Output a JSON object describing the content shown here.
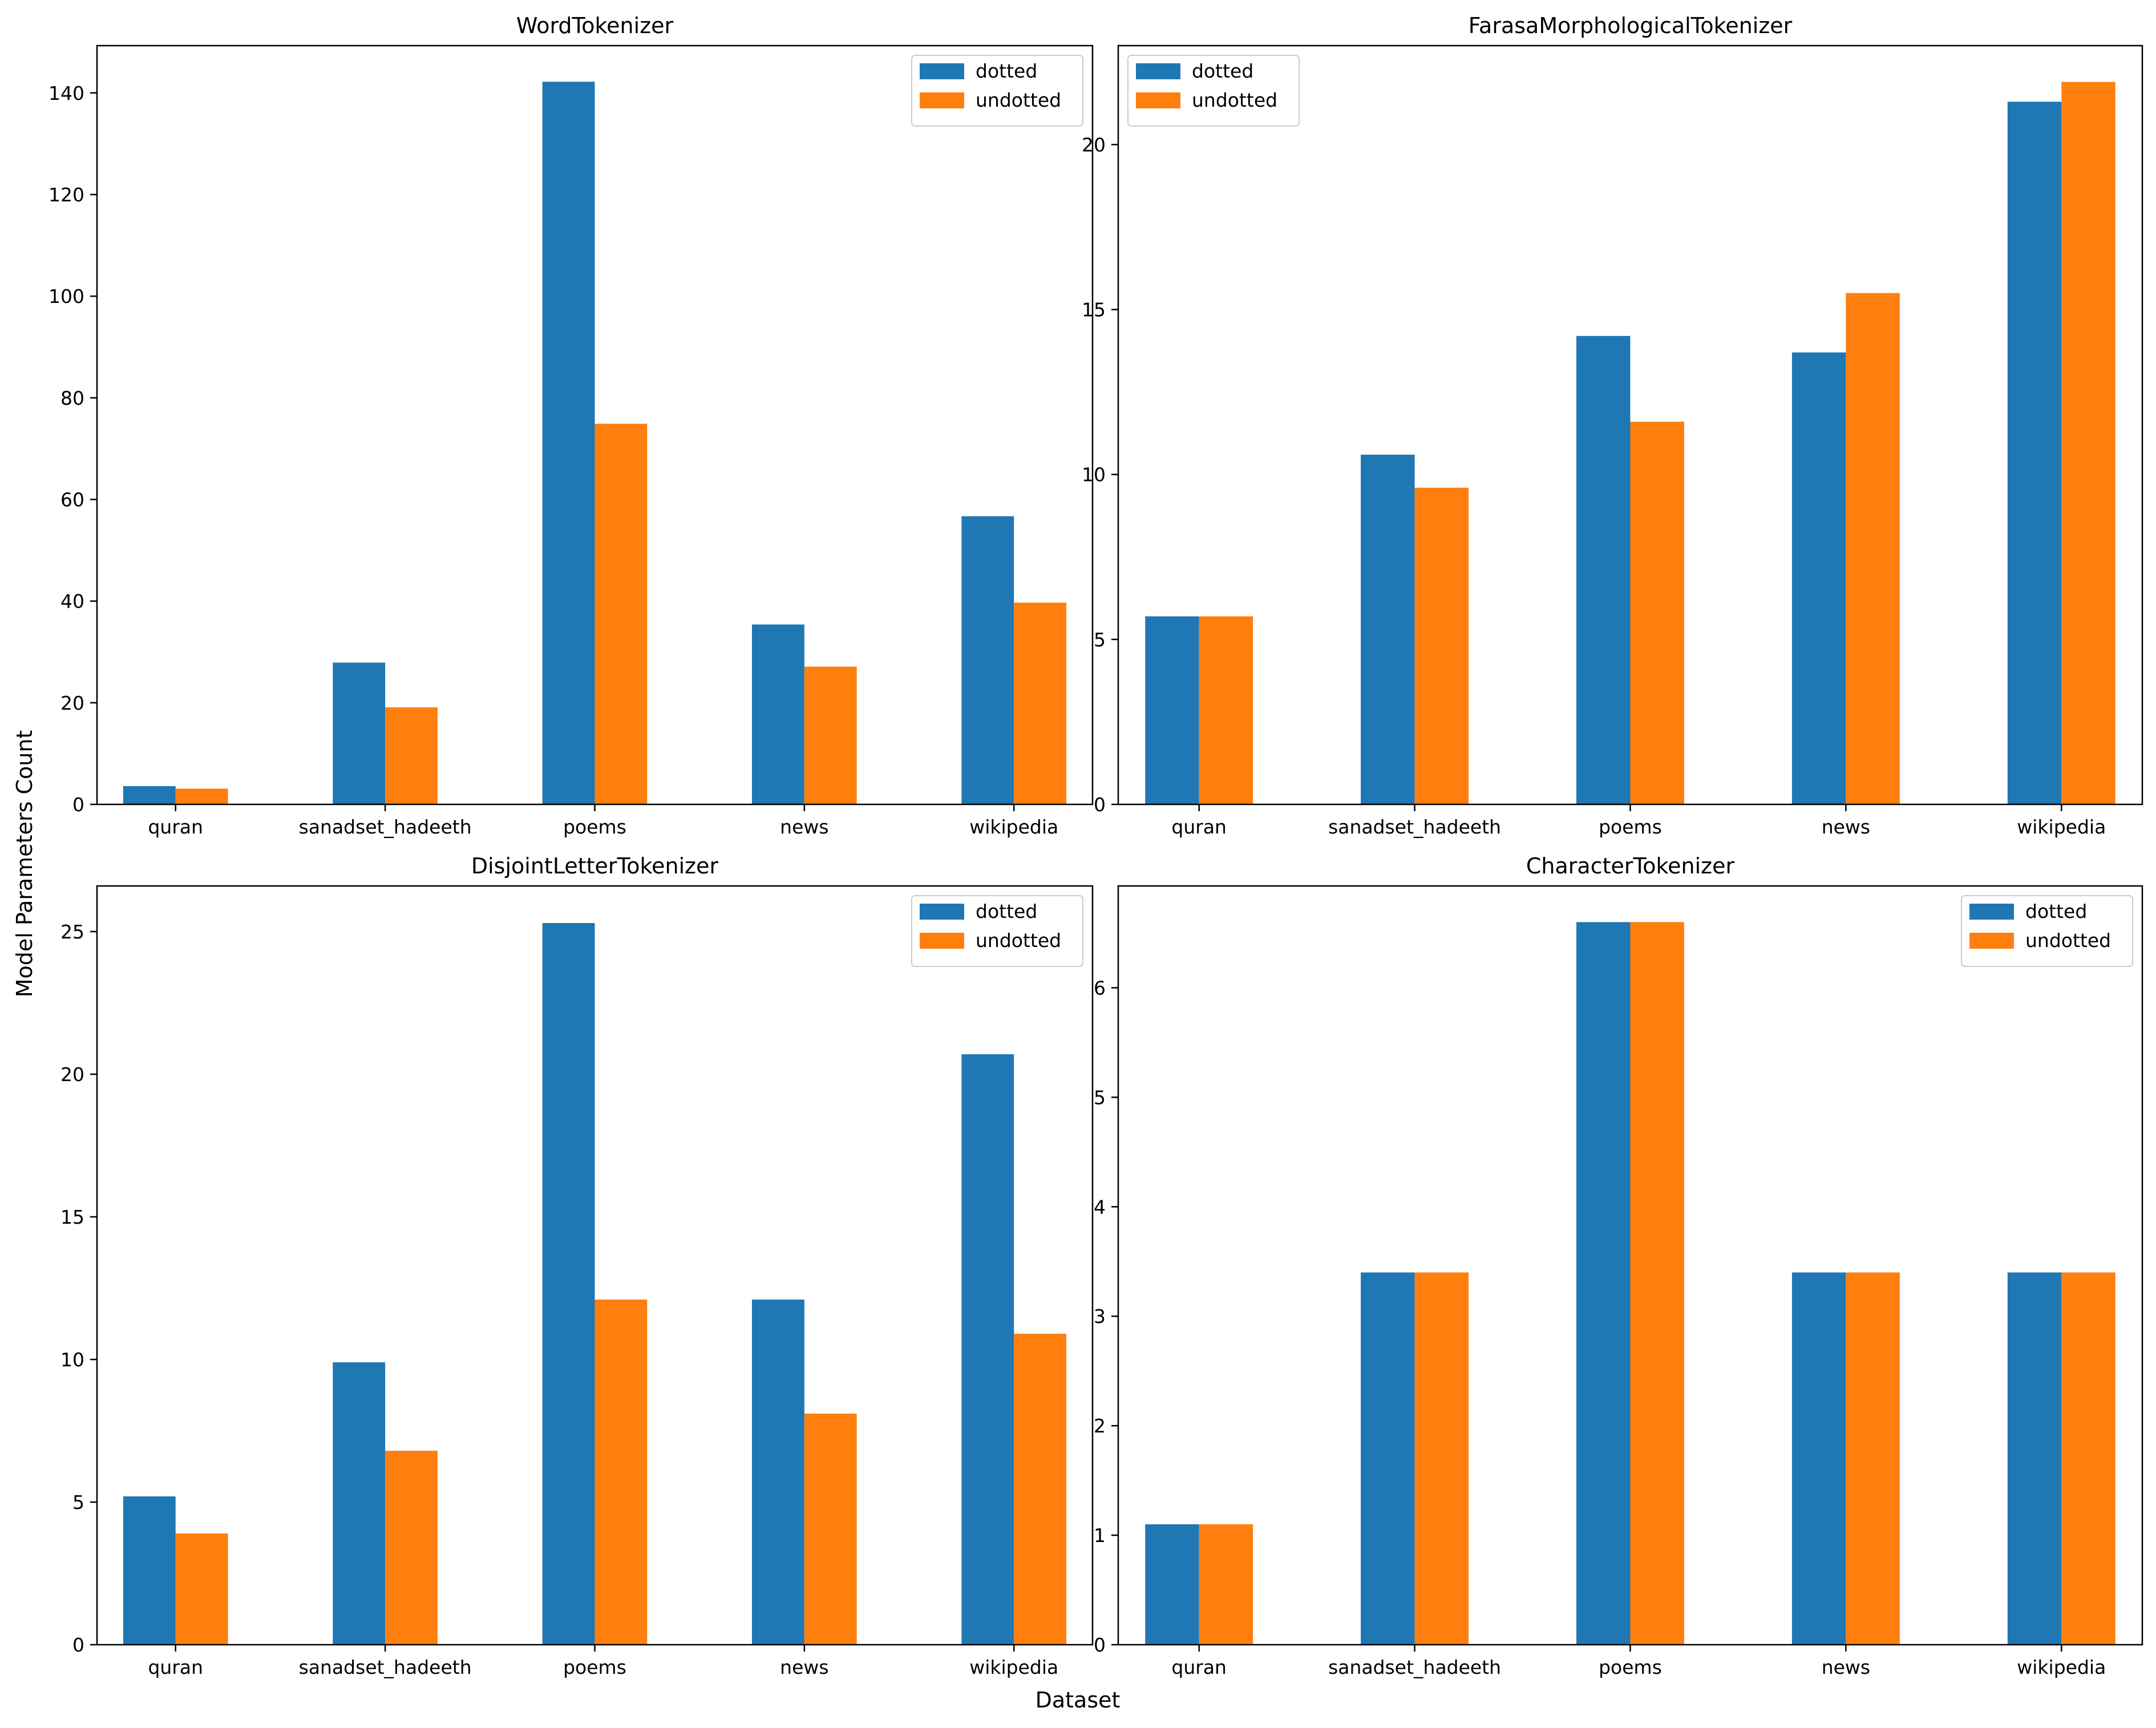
{
  "figure": {
    "xlabel": "Dataset",
    "ylabel": "Model Parameters Count",
    "colors": {
      "dotted": "#1f77b4",
      "undotted": "#ff7f0e"
    }
  },
  "chart_data": [
    {
      "type": "bar",
      "title": "WordTokenizer",
      "categories": [
        "quran",
        "sanadset_hadeeth",
        "poems",
        "news",
        "wikipedia"
      ],
      "series": [
        {
          "name": "dotted",
          "values": [
            3.6,
            27.9,
            142.2,
            35.4,
            56.7
          ]
        },
        {
          "name": "undotted",
          "values": [
            3.1,
            19.1,
            74.9,
            27.1,
            39.7
          ]
        }
      ],
      "ylim": [
        0,
        149.3
      ],
      "yticks": [
        0,
        20,
        40,
        60,
        80,
        100,
        120,
        140
      ],
      "legend": "top-right"
    },
    {
      "type": "bar",
      "title": "FarasaMorphologicalTokenizer",
      "categories": [
        "quran",
        "sanadset_hadeeth",
        "poems",
        "news",
        "wikipedia"
      ],
      "series": [
        {
          "name": "dotted",
          "values": [
            5.7,
            10.6,
            14.2,
            13.7,
            21.3
          ]
        },
        {
          "name": "undotted",
          "values": [
            5.7,
            9.6,
            11.6,
            15.5,
            21.9
          ]
        }
      ],
      "ylim": [
        0,
        23.0
      ],
      "yticks": [
        0,
        5,
        10,
        15,
        20
      ],
      "legend": "top-left"
    },
    {
      "type": "bar",
      "title": "DisjointLetterTokenizer",
      "categories": [
        "quran",
        "sanadset_hadeeth",
        "poems",
        "news",
        "wikipedia"
      ],
      "series": [
        {
          "name": "dotted",
          "values": [
            5.2,
            9.9,
            25.3,
            12.1,
            20.7
          ]
        },
        {
          "name": "undotted",
          "values": [
            3.9,
            6.8,
            12.1,
            8.1,
            10.9
          ]
        }
      ],
      "ylim": [
        0,
        26.6
      ],
      "yticks": [
        0,
        5,
        10,
        15,
        20,
        25
      ],
      "legend": "top-right"
    },
    {
      "type": "bar",
      "title": "CharacterTokenizer",
      "categories": [
        "quran",
        "sanadset_hadeeth",
        "poems",
        "news",
        "wikipedia"
      ],
      "series": [
        {
          "name": "dotted",
          "values": [
            1.1,
            3.4,
            6.6,
            3.4,
            3.4
          ]
        },
        {
          "name": "undotted",
          "values": [
            1.1,
            3.4,
            6.6,
            3.4,
            3.4
          ]
        }
      ],
      "ylim": [
        0,
        6.93
      ],
      "yticks": [
        0,
        1,
        2,
        3,
        4,
        5,
        6
      ],
      "legend": "top-right"
    }
  ]
}
